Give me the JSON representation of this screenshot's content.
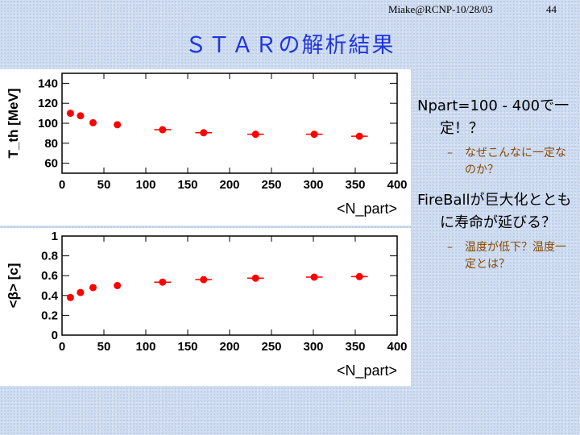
{
  "header": {
    "author_date": "Miake@RCNP-10/28/03",
    "page": "44"
  },
  "title": "ＳＴＡＲの解析結果",
  "bullets": [
    {
      "text": "Npart=100 - 400で一定！？",
      "sub": "なぜこんなに一定なのか？"
    },
    {
      "text": "FireBallが巨大化とともに寿命が延びる？",
      "sub": "温度が低下？温度一定とは？"
    }
  ],
  "sub_dash": "–",
  "colors": {
    "marker": "#ff0000",
    "title": "#1f35e0",
    "sub": "#8a4a00"
  },
  "chart_data": [
    {
      "type": "scatter",
      "ylabel": "T_th [MeV]",
      "xlabel": "<N_part>",
      "xlim": [
        0,
        400
      ],
      "ylim": [
        50,
        150
      ],
      "xticks": [
        0,
        50,
        100,
        150,
        200,
        250,
        300,
        350,
        400
      ],
      "yticks": [
        60,
        80,
        100,
        120,
        140
      ],
      "x": [
        10,
        22,
        37,
        66,
        120,
        169,
        231,
        301,
        355
      ],
      "y": [
        110,
        107.5,
        100.5,
        98.5,
        93.5,
        90.5,
        89,
        89,
        87
      ],
      "xerr": [
        0,
        0,
        0,
        0,
        10,
        10,
        10,
        10,
        10
      ]
    },
    {
      "type": "scatter",
      "ylabel": "<β> [c]",
      "xlabel": "<N_part>",
      "xlim": [
        0,
        400
      ],
      "ylim": [
        0,
        1
      ],
      "xticks": [
        0,
        50,
        100,
        150,
        200,
        250,
        300,
        350,
        400
      ],
      "yticks": [
        0,
        0.2,
        0.4,
        0.6,
        0.8,
        1
      ],
      "x": [
        10,
        22,
        37,
        66,
        120,
        169,
        231,
        301,
        355
      ],
      "y": [
        0.38,
        0.43,
        0.48,
        0.5,
        0.535,
        0.56,
        0.575,
        0.585,
        0.59
      ],
      "xerr": [
        0,
        0,
        0,
        0,
        10,
        10,
        10,
        10,
        10
      ]
    }
  ]
}
